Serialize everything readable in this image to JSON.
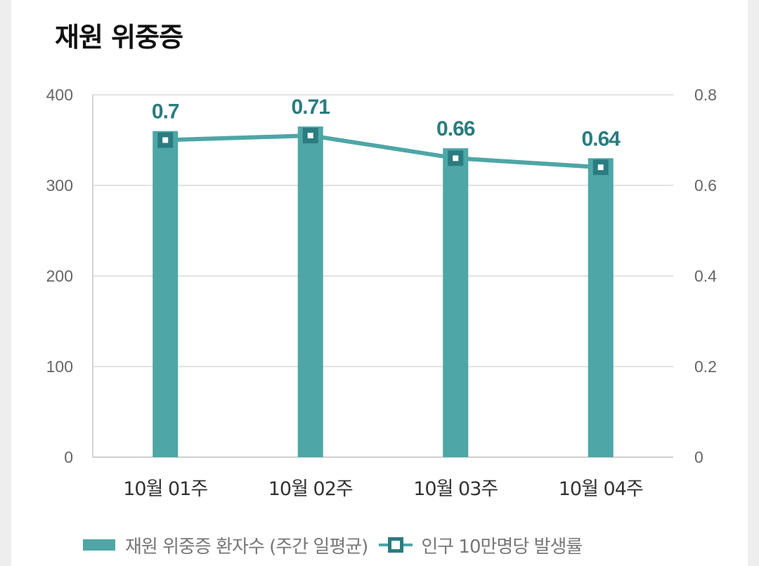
{
  "title": "재원 위중증",
  "colors": {
    "bar": "#4ea6a6",
    "line": "#4ea6a6",
    "marker": "#2a7c80",
    "label": "#2a7c80"
  },
  "legend": {
    "bar_label": "재원 위중증 환자수 (주간 일평균)",
    "line_label": "인구 10만명당 발생률"
  },
  "chart_data": {
    "type": "bar",
    "categories": [
      "10월 01주",
      "10월 02주",
      "10월 03주",
      "10월 04주"
    ],
    "series": [
      {
        "name": "재원 위중증 환자수 (주간 일평균)",
        "type": "bar",
        "axis": "left",
        "values": [
          360,
          365,
          341,
          330
        ]
      },
      {
        "name": "인구 10만명당 발생률",
        "type": "line",
        "axis": "right",
        "values": [
          0.7,
          0.71,
          0.66,
          0.64
        ],
        "data_labels": [
          "0.7",
          "0.71",
          "0.66",
          "0.64"
        ]
      }
    ],
    "y_left": {
      "lim": [
        0,
        400
      ],
      "ticks": [
        "0",
        "100",
        "200",
        "300",
        "400"
      ]
    },
    "y_right": {
      "lim": [
        0,
        0.8
      ],
      "ticks": [
        "0",
        "0.2",
        "0.4",
        "0.6",
        "0.8"
      ]
    },
    "grid": true,
    "legend_position": "bottom"
  }
}
